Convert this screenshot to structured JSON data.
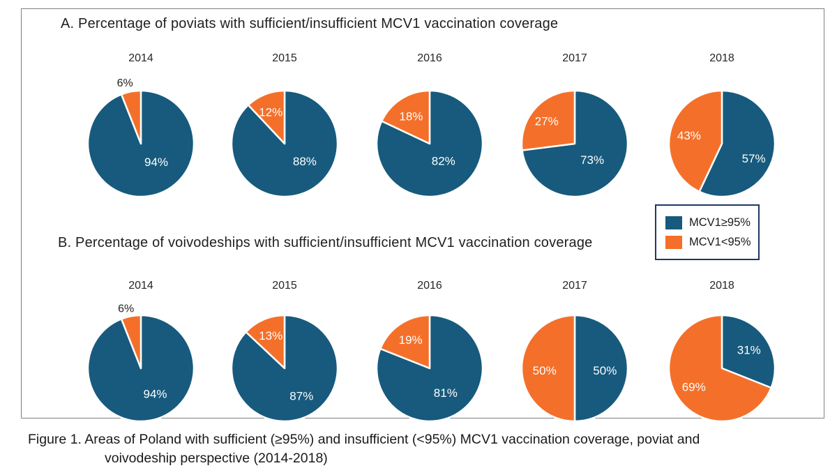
{
  "caption": {
    "line1": "Figure 1. Areas of Poland with sufficient (≥95%) and insufficient (<95%) MCV1 vaccination coverage, poviat and",
    "line2": "voivodeship perspective (2014-2018)"
  },
  "legend": {
    "border_color": "#1f3864",
    "items": [
      {
        "key": "sufficient",
        "label": "MCV1≥95%",
        "color": "#175a7d"
      },
      {
        "key": "insufficient",
        "label": "MCV1<95%",
        "color": "#f4702a"
      }
    ]
  },
  "colors": {
    "sufficient": "#175a7d",
    "insufficient": "#f4702a",
    "slice_divider": "#ffffff",
    "frame_border": "#7e7e7e",
    "text": "#1f1f1f"
  },
  "chart_data": [
    {
      "type": "pie",
      "panel": "A",
      "title": "A. Percentage of poviats with sufficient/insufficient MCV1 vaccination coverage",
      "legend_labels": [
        "MCV1≥95%",
        "MCV1<95%"
      ],
      "legend_position": "right-middle",
      "start_angle_deg": 0,
      "direction": "clockwise",
      "series": [
        {
          "year": "2014",
          "sufficient": 94,
          "insufficient": 6,
          "labels": {
            "sufficient": "94%",
            "insufficient": "6%"
          },
          "label_pos": {
            "sufficient": [
              0.29,
              0.34
            ],
            "insufficient": [
              -0.3,
              -1.15
            ]
          },
          "insufficient_label_outside": true
        },
        {
          "year": "2015",
          "sufficient": 88,
          "insufficient": 12,
          "labels": {
            "sufficient": "88%",
            "insufficient": "12%"
          },
          "label_pos": {
            "sufficient": [
              0.38,
              0.33
            ],
            "insufficient": [
              -0.26,
              -0.6
            ]
          },
          "insufficient_label_outside": false
        },
        {
          "year": "2016",
          "sufficient": 82,
          "insufficient": 18,
          "labels": {
            "sufficient": "82%",
            "insufficient": "18%"
          },
          "label_pos": {
            "sufficient": [
              0.26,
              0.32
            ],
            "insufficient": [
              -0.35,
              -0.52
            ]
          },
          "insufficient_label_outside": false
        },
        {
          "year": "2017",
          "sufficient": 73,
          "insufficient": 27,
          "labels": {
            "sufficient": "73%",
            "insufficient": "27%"
          },
          "label_pos": {
            "sufficient": [
              0.33,
              0.3
            ],
            "insufficient": [
              -0.53,
              -0.43
            ]
          },
          "insufficient_label_outside": false
        },
        {
          "year": "2018",
          "sufficient": 57,
          "insufficient": 43,
          "labels": {
            "sufficient": "57%",
            "insufficient": "43%"
          },
          "label_pos": {
            "sufficient": [
              0.6,
              0.28
            ],
            "insufficient": [
              -0.62,
              -0.16
            ]
          },
          "insufficient_label_outside": false
        }
      ]
    },
    {
      "type": "pie",
      "panel": "B",
      "title": "B. Percentage of voivodeships with sufficient/insufficient MCV1 vaccination coverage",
      "legend_labels": [
        "MCV1≥95%",
        "MCV1<95%"
      ],
      "start_angle_deg": 0,
      "direction": "clockwise",
      "series": [
        {
          "year": "2014",
          "sufficient": 94,
          "insufficient": 6,
          "labels": {
            "sufficient": "94%",
            "insufficient": "6%"
          },
          "label_pos": {
            "sufficient": [
              0.27,
              0.48
            ],
            "insufficient": [
              -0.28,
              -1.13
            ]
          },
          "insufficient_label_outside": true
        },
        {
          "year": "2015",
          "sufficient": 87,
          "insufficient": 13,
          "labels": {
            "sufficient": "87%",
            "insufficient": "13%"
          },
          "label_pos": {
            "sufficient": [
              0.32,
              0.52
            ],
            "insufficient": [
              -0.26,
              -0.62
            ]
          },
          "insufficient_label_outside": false
        },
        {
          "year": "2016",
          "sufficient": 81,
          "insufficient": 19,
          "labels": {
            "sufficient": "81%",
            "insufficient": "19%"
          },
          "label_pos": {
            "sufficient": [
              0.3,
              0.46
            ],
            "insufficient": [
              -0.36,
              -0.54
            ]
          },
          "insufficient_label_outside": false
        },
        {
          "year": "2017",
          "sufficient": 50,
          "insufficient": 50,
          "labels": {
            "sufficient": "50%",
            "insufficient": "50%"
          },
          "label_pos": {
            "sufficient": [
              0.57,
              0.04
            ],
            "insufficient": [
              -0.57,
              0.04
            ]
          },
          "insufficient_label_outside": false
        },
        {
          "year": "2018",
          "sufficient": 31,
          "insufficient": 69,
          "labels": {
            "sufficient": "31%",
            "insufficient": "69%"
          },
          "label_pos": {
            "sufficient": [
              0.51,
              -0.35
            ],
            "insufficient": [
              -0.53,
              0.35
            ]
          },
          "insufficient_label_outside": false
        }
      ]
    }
  ]
}
